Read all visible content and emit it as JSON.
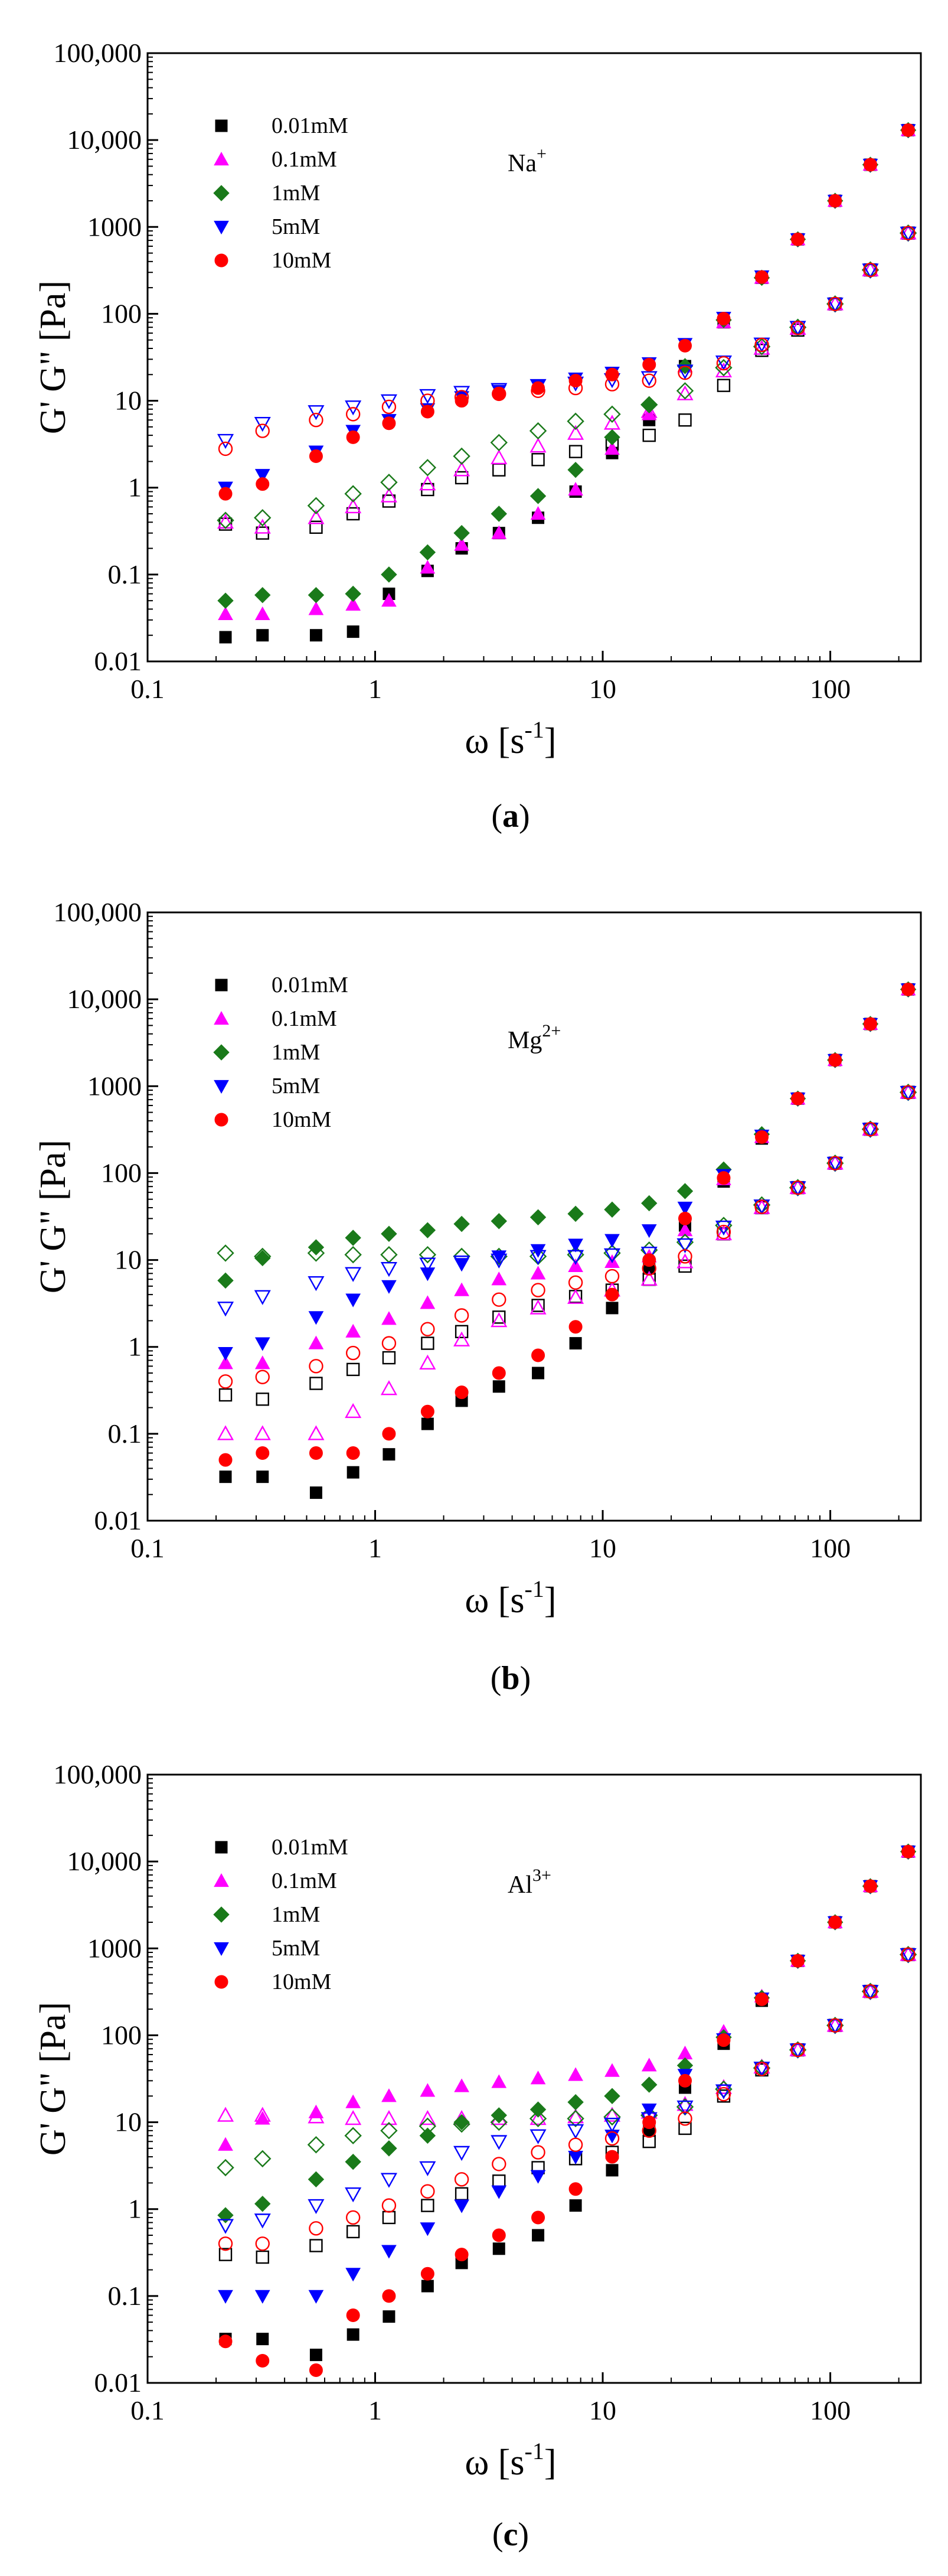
{
  "chart_data": [
    {
      "panel": "a",
      "type": "scatter",
      "caption_open": "(",
      "caption_letter": "a",
      "caption_close": ")",
      "ion_base": "Na",
      "ion_sup": "+",
      "xlabel": "ω [s",
      "xlabel_sup": "-1",
      "xlabel_end": "]",
      "ylabel": "G' G\" [Pa]",
      "xlim": [
        0.1,
        250
      ],
      "ylim": [
        0.01,
        100000
      ],
      "xticks": [
        "0.1",
        "1",
        "10",
        "100"
      ],
      "yticks": [
        "0.01",
        "0.1",
        "1",
        "10",
        "100",
        "1000",
        "10,000",
        "100,000"
      ],
      "legend": [
        "0.01mM",
        "0.1mM",
        "1mM",
        "5mM",
        "10mM"
      ],
      "series": [
        {
          "name": "0.01mM",
          "color": "#000000",
          "marker": "square",
          "x": [
            0.22,
            0.32,
            0.55,
            0.8,
            1.15,
            1.7,
            2.4,
            3.5,
            5.2,
            7.6,
            11,
            16,
            23,
            34,
            50,
            72,
            105,
            150,
            220
          ],
          "Gp": [
            0.019,
            0.02,
            0.02,
            0.022,
            0.06,
            0.11,
            0.2,
            0.3,
            0.45,
            0.9,
            2.5,
            6,
            25,
            80,
            260,
            720,
            2000,
            5200,
            13000
          ],
          "Gpp": [
            0.38,
            0.3,
            0.35,
            0.5,
            0.7,
            0.95,
            1.3,
            1.6,
            2.1,
            2.6,
            3.2,
            4,
            6,
            15,
            38,
            65,
            130,
            320,
            850
          ]
        },
        {
          "name": "0.1mM",
          "color": "#ff00ff",
          "marker": "triangle-up",
          "x": [
            0.22,
            0.32,
            0.55,
            0.8,
            1.15,
            1.7,
            2.4,
            3.5,
            5.2,
            7.6,
            11,
            16,
            23,
            34,
            50,
            72,
            105,
            150,
            220
          ],
          "Gp": [
            0.035,
            0.035,
            0.04,
            0.045,
            0.05,
            0.12,
            0.22,
            0.3,
            0.5,
            0.95,
            2.8,
            7,
            25,
            80,
            260,
            720,
            2000,
            5200,
            13000
          ],
          "Gpp": [
            0.4,
            0.35,
            0.45,
            0.6,
            0.8,
            1.1,
            1.6,
            2.2,
            3,
            4.2,
            5.5,
            7.5,
            12,
            22,
            40,
            68,
            130,
            320,
            850
          ]
        },
        {
          "name": "1mM",
          "color": "#1a7a1a",
          "marker": "diamond",
          "x": [
            0.22,
            0.32,
            0.55,
            0.8,
            1.15,
            1.7,
            2.4,
            3.5,
            5.2,
            7.6,
            11,
            16,
            23,
            34,
            50,
            72,
            105,
            150,
            220
          ],
          "Gp": [
            0.05,
            0.058,
            0.058,
            0.06,
            0.1,
            0.18,
            0.3,
            0.5,
            0.8,
            1.6,
            3.8,
            9,
            25,
            85,
            260,
            720,
            2000,
            5200,
            13000
          ],
          "Gpp": [
            0.42,
            0.45,
            0.62,
            0.85,
            1.15,
            1.7,
            2.3,
            3.3,
            4.5,
            5.8,
            7,
            9,
            13,
            24,
            42,
            70,
            130,
            320,
            850
          ]
        },
        {
          "name": "5mM",
          "color": "#0000ff",
          "marker": "triangle-down",
          "x": [
            0.22,
            0.32,
            0.55,
            0.8,
            1.15,
            1.7,
            2.4,
            3.5,
            5.2,
            7.6,
            11,
            16,
            23,
            34,
            50,
            72,
            105,
            150,
            220
          ],
          "Gp": [
            1.0,
            1.4,
            2.6,
            4.5,
            6,
            8,
            11,
            13,
            15,
            18,
            21,
            27,
            45,
            90,
            270,
            720,
            2000,
            5200,
            13000
          ],
          "Gpp": [
            3.5,
            5.5,
            7.5,
            8.5,
            10,
            11.5,
            12.5,
            13.5,
            15,
            16,
            17.5,
            18.5,
            22,
            28,
            45,
            70,
            130,
            320,
            850
          ]
        },
        {
          "name": "10mM",
          "color": "#ff0000",
          "marker": "circle",
          "x": [
            0.22,
            0.32,
            0.55,
            0.8,
            1.15,
            1.7,
            2.4,
            3.5,
            5.2,
            7.6,
            11,
            16,
            23,
            34,
            50,
            72,
            105,
            150,
            220
          ],
          "Gp": [
            0.85,
            1.1,
            2.3,
            3.8,
            5.5,
            7.5,
            10,
            12,
            14,
            17,
            20,
            26,
            43,
            88,
            265,
            720,
            2000,
            5200,
            13000
          ],
          "Gpp": [
            2.8,
            4.5,
            6,
            7,
            8.5,
            10,
            11,
            12,
            13,
            14,
            15.5,
            17,
            21,
            27,
            44,
            69,
            130,
            320,
            850
          ]
        }
      ]
    },
    {
      "panel": "b",
      "type": "scatter",
      "caption_open": "(",
      "caption_letter": "b",
      "caption_close": ")",
      "ion_base": "Mg",
      "ion_sup": "2+",
      "xlabel": "ω [s",
      "xlabel_sup": "-1",
      "xlabel_end": "]",
      "ylabel": "G' G\" [Pa]",
      "xlim": [
        0.1,
        250
      ],
      "ylim": [
        0.01,
        100000
      ],
      "xticks": [
        "0.1",
        "1",
        "10",
        "100"
      ],
      "yticks": [
        "0.01",
        "0.1",
        "1",
        "10",
        "100",
        "1000",
        "10,000",
        "100,000"
      ],
      "legend": [
        "0.01mM",
        "0.1mM",
        "1mM",
        "5mM",
        "10mM"
      ],
      "series": [
        {
          "name": "0.01mM",
          "color": "#000000",
          "marker": "square",
          "x": [
            0.22,
            0.32,
            0.55,
            0.8,
            1.15,
            1.7,
            2.4,
            3.5,
            5.2,
            7.6,
            11,
            16,
            23,
            34,
            50,
            72,
            105,
            150,
            220
          ],
          "Gp": [
            0.032,
            0.032,
            0.021,
            0.036,
            0.058,
            0.13,
            0.24,
            0.35,
            0.5,
            1.1,
            2.8,
            8,
            25,
            80,
            250,
            720,
            2000,
            5200,
            13000
          ],
          "Gpp": [
            0.28,
            0.25,
            0.38,
            0.55,
            0.75,
            1.1,
            1.5,
            2.2,
            3,
            3.8,
            4.5,
            6,
            8.5,
            20,
            40,
            68,
            130,
            320,
            850
          ]
        },
        {
          "name": "0.1mM",
          "color": "#ff00ff",
          "marker": "triangle-up",
          "x": [
            0.22,
            0.32,
            0.55,
            0.8,
            1.15,
            1.7,
            2.4,
            3.5,
            5.2,
            7.6,
            11,
            16,
            23,
            34,
            50,
            72,
            105,
            150,
            220
          ],
          "Gp": [
            0.65,
            0.65,
            1.1,
            1.5,
            2.1,
            3.2,
            4.5,
            6,
            7,
            8.5,
            9.5,
            11,
            22,
            85,
            260,
            720,
            2000,
            5200,
            13000
          ],
          "Gpp": [
            0.1,
            0.1,
            0.1,
            0.18,
            0.33,
            0.65,
            1.2,
            2,
            2.8,
            3.7,
            4.5,
            6,
            9.5,
            20,
            40,
            68,
            130,
            320,
            850
          ]
        },
        {
          "name": "1mM",
          "color": "#1a7a1a",
          "marker": "diamond",
          "x": [
            0.22,
            0.32,
            0.55,
            0.8,
            1.15,
            1.7,
            2.4,
            3.5,
            5.2,
            7.6,
            11,
            16,
            23,
            34,
            50,
            72,
            105,
            150,
            220
          ],
          "Gp": [
            5.8,
            10.5,
            14,
            18,
            20,
            22,
            26,
            28,
            31,
            34,
            38,
            45,
            62,
            110,
            280,
            720,
            2000,
            5200,
            13000
          ],
          "Gpp": [
            12,
            11,
            12,
            11.5,
            11.5,
            11.5,
            11,
            11,
            11,
            11.5,
            12,
            13,
            16,
            25,
            43,
            68,
            130,
            320,
            850
          ]
        },
        {
          "name": "5mM",
          "color": "#0000ff",
          "marker": "triangle-down",
          "x": [
            0.22,
            0.32,
            0.55,
            0.8,
            1.15,
            1.7,
            2.4,
            3.5,
            5.2,
            7.6,
            11,
            16,
            23,
            34,
            50,
            72,
            105,
            150,
            220
          ],
          "Gp": [
            0.85,
            1.1,
            2.2,
            3.5,
            5,
            7,
            9,
            11,
            13,
            15,
            17,
            22,
            40,
            95,
            270,
            720,
            2000,
            5200,
            13000
          ],
          "Gpp": [
            2.8,
            3.8,
            5.5,
            7,
            8,
            9,
            9.5,
            10,
            11,
            11,
            11.5,
            12,
            15,
            24,
            42,
            68,
            130,
            320,
            850
          ]
        },
        {
          "name": "10mM",
          "color": "#ff0000",
          "marker": "circle",
          "x": [
            0.22,
            0.32,
            0.55,
            0.8,
            1.15,
            1.7,
            2.4,
            3.5,
            5.2,
            7.6,
            11,
            16,
            23,
            34,
            50,
            72,
            105,
            150,
            220
          ],
          "Gp": [
            0.05,
            0.06,
            0.06,
            0.06,
            0.1,
            0.18,
            0.3,
            0.5,
            0.8,
            1.7,
            4,
            10,
            30,
            88,
            260,
            720,
            2000,
            5200,
            13000
          ],
          "Gpp": [
            0.4,
            0.45,
            0.6,
            0.85,
            1.1,
            1.6,
            2.3,
            3.5,
            4.5,
            5.5,
            6.5,
            8,
            11,
            21,
            41,
            68,
            130,
            320,
            850
          ]
        }
      ]
    },
    {
      "panel": "c",
      "type": "scatter",
      "caption_open": "(",
      "caption_letter": "c",
      "caption_close": ")",
      "ion_base": "Al",
      "ion_sup": "3+",
      "xlabel": "ω [s",
      "xlabel_sup": "-1",
      "xlabel_end": "]",
      "ylabel": "G' G\" [Pa]",
      "xlim": [
        0.1,
        250
      ],
      "ylim": [
        0.01,
        100000
      ],
      "xticks": [
        "0.1",
        "1",
        "10",
        "100"
      ],
      "yticks": [
        "0.01",
        "0.1",
        "1",
        "10",
        "100",
        "1000",
        "10,000",
        "100,000"
      ],
      "legend": [
        "0.01mM",
        "0.1mM",
        "1mM",
        "5mM",
        "10mM"
      ],
      "series": [
        {
          "name": "0.01mM",
          "color": "#000000",
          "marker": "square",
          "x": [
            0.22,
            0.32,
            0.55,
            0.8,
            1.15,
            1.7,
            2.4,
            3.5,
            5.2,
            7.6,
            11,
            16,
            23,
            34,
            50,
            72,
            105,
            150,
            220
          ],
          "Gp": [
            0.032,
            0.032,
            0.021,
            0.036,
            0.058,
            0.13,
            0.24,
            0.35,
            0.5,
            1.1,
            2.8,
            8,
            25,
            80,
            250,
            720,
            2000,
            5200,
            13000
          ],
          "Gpp": [
            0.3,
            0.28,
            0.38,
            0.55,
            0.8,
            1.1,
            1.5,
            2.1,
            3,
            3.8,
            4.5,
            6,
            8.5,
            20,
            40,
            68,
            130,
            320,
            850
          ]
        },
        {
          "name": "0.1mM",
          "color": "#ff00ff",
          "marker": "triangle-up",
          "x": [
            0.22,
            0.32,
            0.55,
            0.8,
            1.15,
            1.7,
            2.4,
            3.5,
            5.2,
            7.6,
            11,
            16,
            23,
            34,
            50,
            72,
            105,
            150,
            220
          ],
          "Gp": [
            5.5,
            11,
            13,
            17,
            20,
            23,
            26,
            29,
            32,
            35,
            39,
            45,
            62,
            110,
            280,
            720,
            2000,
            5200,
            13000
          ],
          "Gpp": [
            12,
            12,
            11.5,
            11,
            11,
            11,
            11,
            11,
            11,
            11.5,
            12,
            13,
            16,
            25,
            43,
            68,
            130,
            320,
            850
          ]
        },
        {
          "name": "1mM",
          "color": "#1a7a1a",
          "marker": "diamond",
          "x": [
            0.22,
            0.32,
            0.55,
            0.8,
            1.15,
            1.7,
            2.4,
            3.5,
            5.2,
            7.6,
            11,
            16,
            23,
            34,
            50,
            72,
            105,
            150,
            220
          ],
          "Gp": [
            0.85,
            1.15,
            2.2,
            3.5,
            5,
            7,
            10,
            12,
            14,
            17,
            20,
            27,
            45,
            95,
            270,
            720,
            2000,
            5200,
            13000
          ],
          "Gpp": [
            3,
            3.8,
            5.5,
            7,
            8,
            9,
            9.5,
            10,
            11,
            11,
            11.5,
            12,
            15,
            24,
            42,
            68,
            130,
            320,
            850
          ]
        },
        {
          "name": "5mM",
          "color": "#0000ff",
          "marker": "triangle-down",
          "x": [
            0.22,
            0.32,
            0.55,
            0.8,
            1.15,
            1.7,
            2.4,
            3.5,
            5.2,
            7.6,
            11,
            16,
            23,
            34,
            50,
            72,
            105,
            150,
            220
          ],
          "Gp": [
            0.1,
            0.1,
            0.1,
            0.18,
            0.33,
            0.6,
            1.1,
            1.6,
            2.4,
            4,
            7,
            14,
            35,
            90,
            265,
            720,
            2000,
            5200,
            13000
          ],
          "Gpp": [
            0.65,
            0.75,
            1.1,
            1.5,
            2.2,
            3,
            4.5,
            6,
            7,
            8,
            9.5,
            11,
            15,
            23,
            42,
            68,
            130,
            320,
            850
          ]
        },
        {
          "name": "10mM",
          "color": "#ff0000",
          "marker": "circle",
          "x": [
            0.22,
            0.32,
            0.55,
            0.8,
            1.15,
            1.7,
            2.4,
            3.5,
            5.2,
            7.6,
            11,
            16,
            23,
            34,
            50,
            72,
            105,
            150,
            220
          ],
          "Gp": [
            0.03,
            0.018,
            0.014,
            0.06,
            0.1,
            0.18,
            0.3,
            0.5,
            0.8,
            1.7,
            4,
            10,
            30,
            88,
            260,
            720,
            2000,
            5200,
            13000
          ],
          "Gpp": [
            0.4,
            0.4,
            0.6,
            0.8,
            1.1,
            1.6,
            2.2,
            3.3,
            4.5,
            5.5,
            6.5,
            8,
            11,
            21,
            41,
            68,
            130,
            320,
            850
          ]
        }
      ]
    }
  ]
}
